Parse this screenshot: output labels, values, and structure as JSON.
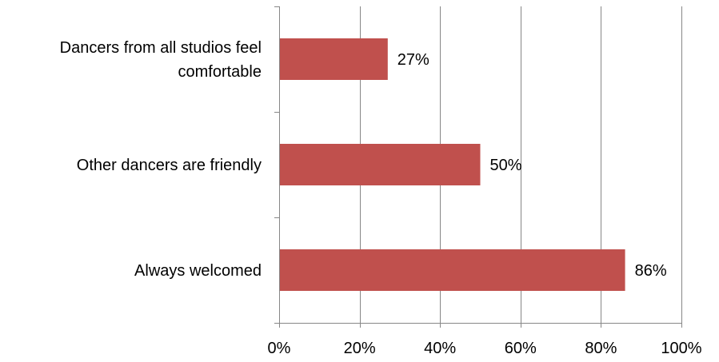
{
  "chart_data": {
    "type": "bar",
    "orientation": "horizontal",
    "categories": [
      "Always welcomed",
      "Other dancers are friendly",
      "Dancers from all studios feel comfortable"
    ],
    "category_lines": [
      [
        "Always welcomed"
      ],
      [
        "Other dancers are friendly"
      ],
      [
        "Dancers from all studios feel",
        "comfortable"
      ]
    ],
    "values": [
      86,
      50,
      27
    ],
    "data_labels": [
      "86%",
      "50%",
      "27%"
    ],
    "xlim": [
      0,
      100
    ],
    "x_ticks": [
      0,
      20,
      40,
      60,
      80,
      100
    ],
    "x_tick_labels": [
      "0%",
      "20%",
      "40%",
      "60%",
      "80%",
      "100%"
    ],
    "grid": true,
    "legend": "none",
    "colors": {
      "bar": "#C0504D",
      "grid": "#878787",
      "axis": "#878787"
    }
  }
}
